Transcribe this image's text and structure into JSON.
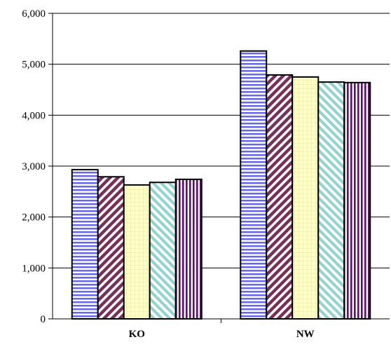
{
  "chart_data": {
    "type": "bar",
    "categories": [
      "KO",
      "NW"
    ],
    "series": [
      {
        "pattern": "horizontal-stripes",
        "color": "#6666ee",
        "values": [
          2930,
          5260
        ]
      },
      {
        "pattern": "diagonal-stripes",
        "color": "#7a2e5a",
        "values": [
          2790,
          4790
        ]
      },
      {
        "pattern": "grid",
        "color": "#f2f2a6",
        "values": [
          2630,
          4750
        ]
      },
      {
        "pattern": "diagonal-stripes-light",
        "color": "#8fd3d3",
        "values": [
          2680,
          4650
        ]
      },
      {
        "pattern": "vertical-stripes",
        "color": "#5c0f6e",
        "values": [
          2740,
          4640
        ]
      }
    ],
    "yticks": [
      "0",
      "1,000",
      "2,000",
      "3,000",
      "4,000",
      "5,000",
      "6,000"
    ],
    "ylim": [
      0,
      6000
    ],
    "grid": true
  }
}
